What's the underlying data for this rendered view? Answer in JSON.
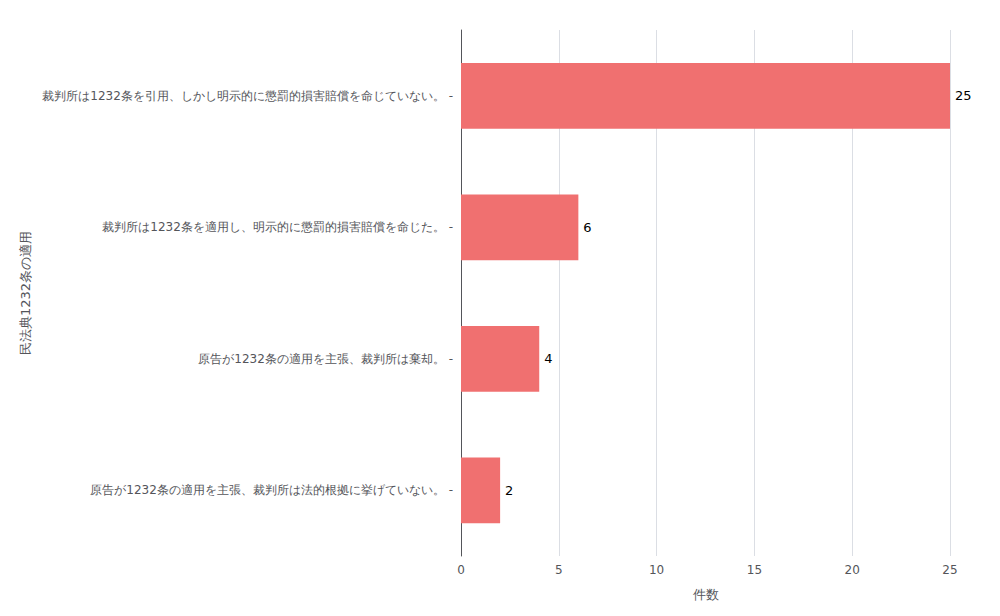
{
  "chart_data": {
    "type": "bar",
    "orientation": "horizontal",
    "categories": [
      "裁判所は1232条を引用、しかし明示的に懲罰的損害賠償を命じていない。 -",
      "裁判所は1232条を適用し、明示的に懲罰的損害賠償を命じた。 -",
      "原告が1232条の適用を主張、裁判所は棄却。 -",
      "原告が1232条の適用を主張、裁判所は法的根拠に挙げていない。 -"
    ],
    "values": [
      25,
      6,
      4,
      2
    ],
    "color": "#F07070",
    "xlabel": "件数",
    "ylabel": "民法典1232条の適用",
    "xlim": [
      0,
      25
    ],
    "xticks": [
      0,
      5,
      10,
      15,
      20,
      25
    ],
    "grid": true,
    "data_labels": true
  }
}
